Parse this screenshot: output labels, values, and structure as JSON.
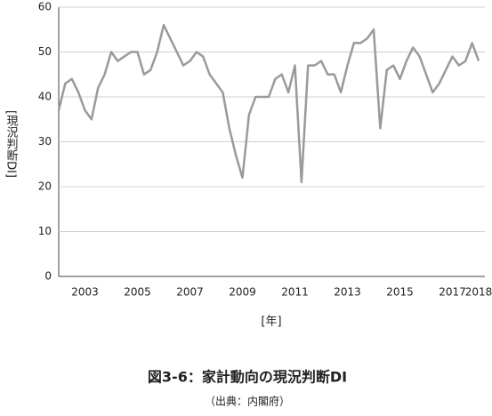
{
  "chart_data": {
    "type": "line",
    "title": "図3-6：家計動向の現況判断DI",
    "subtitle": "（出典：内閣府）",
    "x_label": "[年]",
    "y_label": "[現況判断DI]",
    "categories": [
      null,
      null,
      null,
      null,
      "2003",
      null,
      null,
      null,
      null,
      null,
      null,
      null,
      "2005",
      null,
      null,
      null,
      null,
      null,
      null,
      null,
      "2007",
      null,
      null,
      null,
      null,
      null,
      null,
      null,
      "2009",
      null,
      null,
      null,
      null,
      null,
      null,
      null,
      "2011",
      null,
      null,
      null,
      null,
      null,
      null,
      null,
      "2013",
      null,
      null,
      null,
      null,
      null,
      null,
      null,
      "2015",
      null,
      null,
      null,
      null,
      null,
      null,
      null,
      "2017",
      null,
      null,
      null,
      "2018"
    ],
    "values": [
      37,
      43,
      44,
      41,
      37,
      35,
      42,
      45,
      50,
      48,
      49,
      50,
      50,
      45,
      46,
      50,
      56,
      53,
      50,
      47,
      48,
      50,
      49,
      45,
      43,
      41,
      33,
      27,
      22,
      36,
      40,
      40,
      40,
      44,
      45,
      41,
      47,
      21,
      47,
      47,
      48,
      45,
      45,
      41,
      47,
      52,
      52,
      53,
      55,
      33,
      46,
      47,
      44,
      48,
      51,
      49,
      45,
      41,
      43,
      46,
      49,
      47,
      48,
      52,
      48
    ],
    "color": "#9a9a9a",
    "ylim": [
      0,
      60
    ],
    "yticks": [
      0,
      10,
      20,
      30,
      40,
      50,
      60
    ],
    "grid": true
  }
}
